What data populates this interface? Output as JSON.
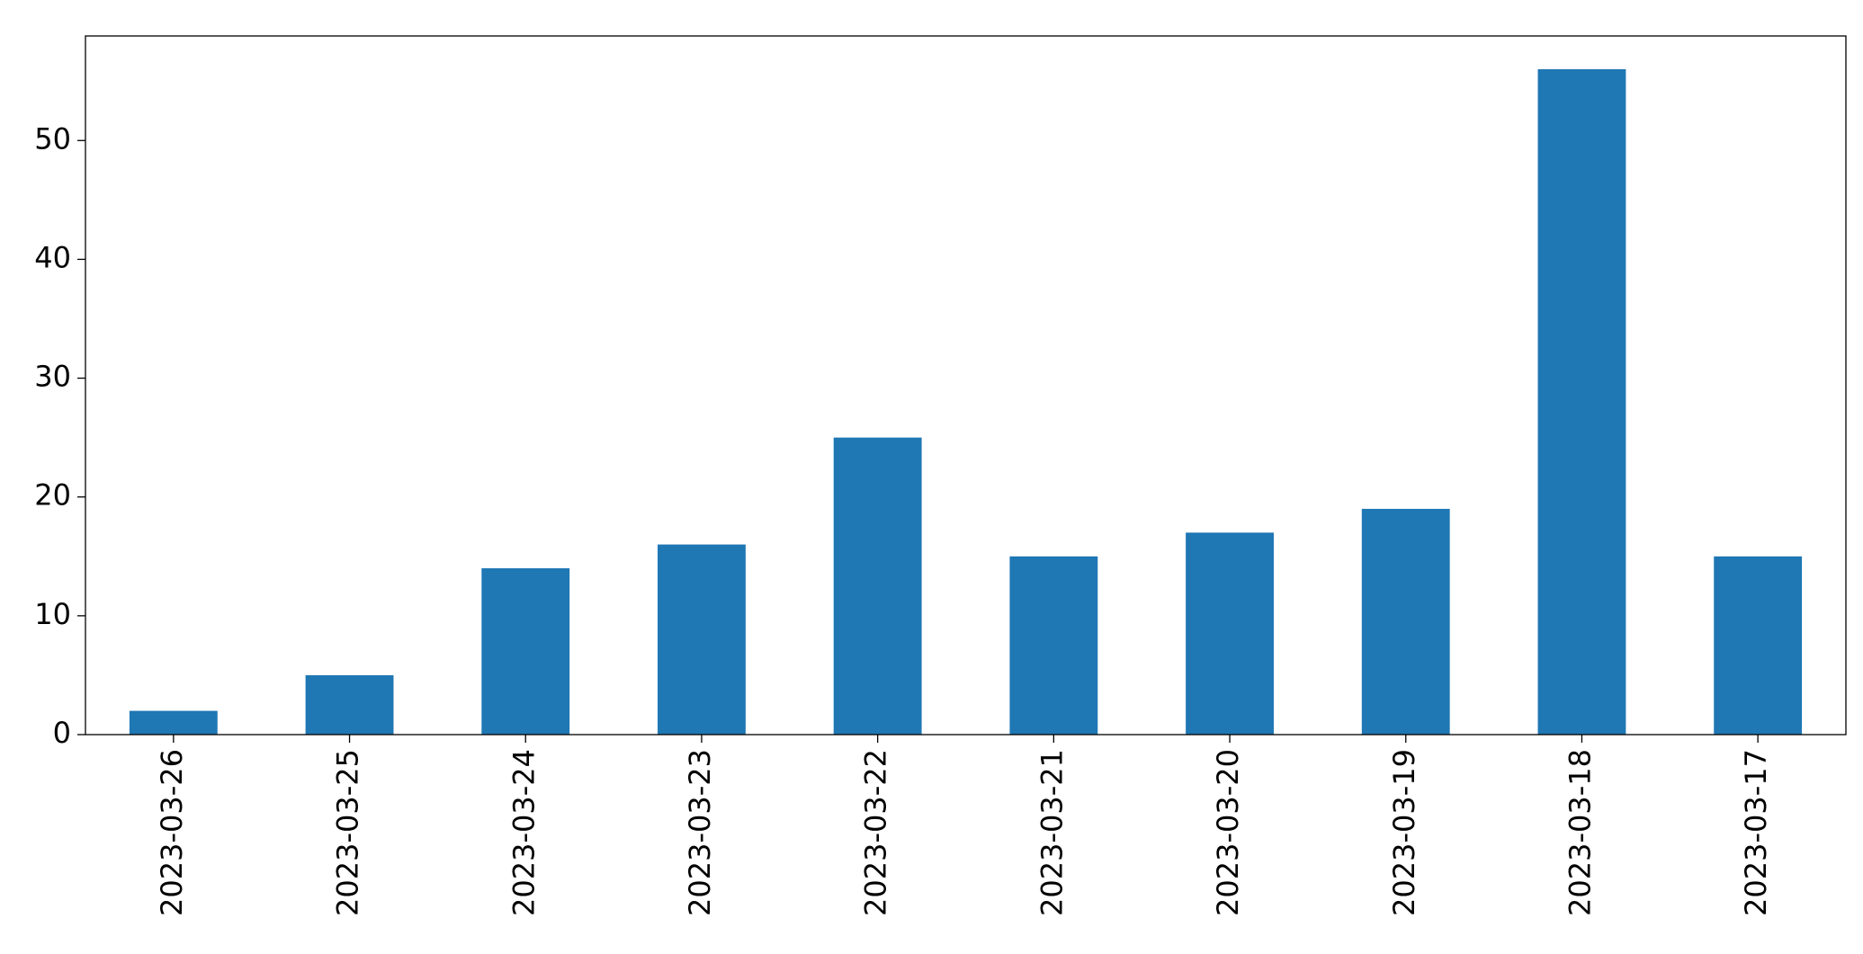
{
  "chart_data": {
    "type": "bar",
    "categories": [
      "2023-03-26",
      "2023-03-25",
      "2023-03-24",
      "2023-03-23",
      "2023-03-22",
      "2023-03-21",
      "2023-03-20",
      "2023-03-19",
      "2023-03-18",
      "2023-03-17"
    ],
    "values": [
      2,
      5,
      14,
      16,
      25,
      15,
      17,
      19,
      56,
      15
    ],
    "color": "#1f77b4",
    "ylim": [
      0,
      58.8
    ],
    "yticks": [
      0,
      10,
      20,
      30,
      40,
      50
    ],
    "grid": false
  }
}
